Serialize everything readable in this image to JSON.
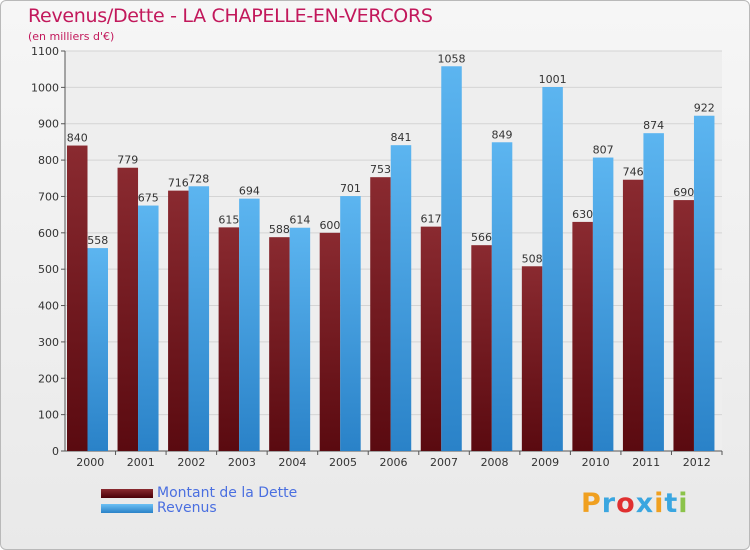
{
  "chart_data": {
    "type": "bar",
    "title": "Revenus/Dette - LA CHAPELLE-EN-VERCORS",
    "subtitle": "(en milliers d'€)",
    "categories": [
      "2000",
      "2001",
      "2002",
      "2003",
      "2004",
      "2005",
      "2006",
      "2007",
      "2008",
      "2009",
      "2010",
      "2011",
      "2012"
    ],
    "series": [
      {
        "name": "Montant de la Dette",
        "values": [
          840,
          779,
          716,
          615,
          588,
          600,
          753,
          617,
          566,
          508,
          630,
          746,
          690
        ],
        "color": "#7a1a22"
      },
      {
        "name": "Revenus",
        "values": [
          558,
          675,
          728,
          694,
          614,
          701,
          841,
          1058,
          849,
          1001,
          807,
          874,
          922
        ],
        "color": "#3c9fe6"
      }
    ],
    "yticks": [
      0,
      100,
      200,
      300,
      400,
      500,
      600,
      700,
      800,
      900,
      1000,
      1100
    ],
    "ylim": [
      0,
      1100
    ],
    "xlabel": "",
    "ylabel": "",
    "grid": true,
    "legend_position": "bottom-left"
  },
  "logo": {
    "text": "Proxiti",
    "colors": [
      "#f0a020",
      "#3aa6e0",
      "#e03030",
      "#3aa6e0",
      "#f0a020",
      "#3aa6e0",
      "#8bc34a"
    ]
  }
}
